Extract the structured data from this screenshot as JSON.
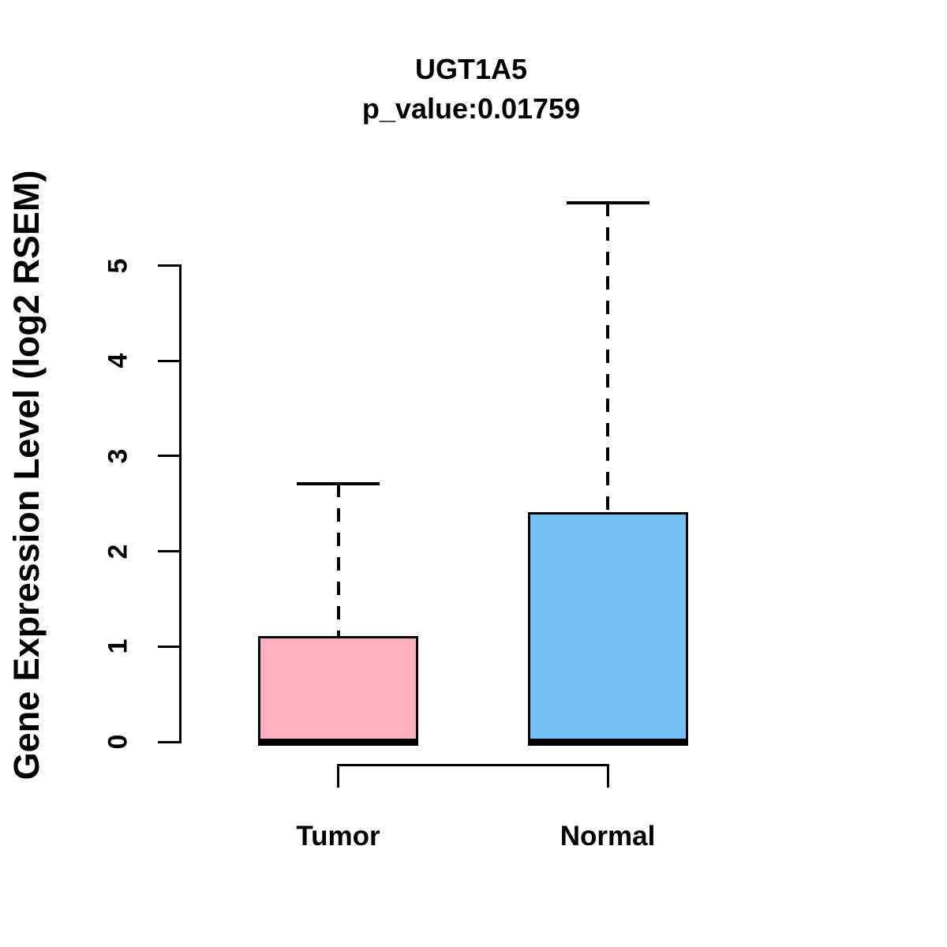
{
  "chart_data": {
    "type": "boxplot",
    "title": "UGT1A5",
    "subtitle": "p_value:0.01759",
    "p_value": "0.01759",
    "ylabel": "Gene Expression Level (log2 RSEM)",
    "xlabel": "",
    "categories": [
      "Tumor",
      "Normal"
    ],
    "yticks": [
      0,
      1,
      2,
      3,
      4,
      5
    ],
    "ylim": [
      0,
      5.8
    ],
    "grid": false,
    "legend": false,
    "series": [
      {
        "name": "Tumor",
        "fill": "#FFAFC0",
        "whisker_low": 0,
        "q1": 0,
        "median": 0,
        "q3": 1.1,
        "whisker_high": 2.71
      },
      {
        "name": "Normal",
        "fill": "#74BFF7",
        "whisker_low": 0,
        "q1": 0,
        "median": 0,
        "q3": 2.4,
        "whisker_high": 5.66
      }
    ],
    "colors": {
      "box_border": "#000000",
      "median": "#000000",
      "whisker": "#000000",
      "axis": "#000000",
      "text": "#000000",
      "background": "#FFFFFF"
    },
    "annotations": [
      {
        "type": "comparison-bracket",
        "from": "Tumor",
        "to": "Normal"
      }
    ]
  }
}
